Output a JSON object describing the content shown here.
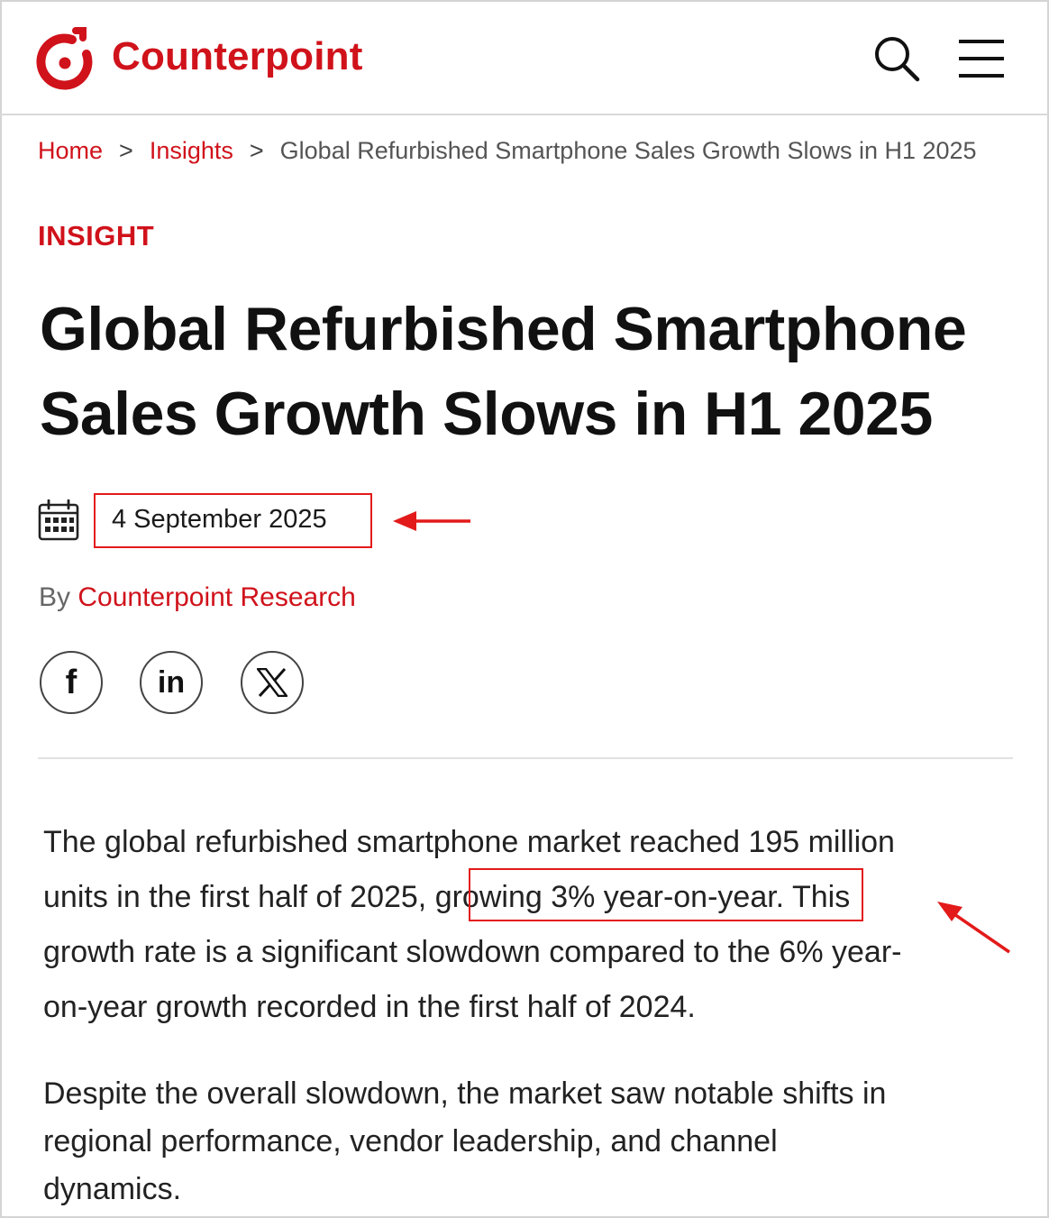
{
  "header": {
    "brand": "Counterpoint",
    "icons": [
      "counterpoint-logo-icon",
      "search-icon",
      "hamburger-menu-icon"
    ]
  },
  "breadcrumb": {
    "home": "Home",
    "separator": ">",
    "insights": "Insights",
    "current": "Global Refurbished Smartphone Sales Growth Slows in H1 2025"
  },
  "article": {
    "category": "INSIGHT",
    "title_line1": "Global Refurbished Smartphone",
    "title_line2": "Sales Growth Slows in H1 2025",
    "date": "4 September 2025",
    "by_prefix": "By",
    "author": "Counterpoint Research",
    "share": {
      "facebook": "f",
      "linkedin": "in",
      "x": "X"
    },
    "paragraph1": {
      "line1": "The global refurbished smartphone market reached 195 million",
      "line2_before": "units in the first half of 2025,",
      "line2_highlight": "growing 3% year-on-year.",
      "line2_after": "This",
      "line3": "growth rate is a significant slowdown compared to the 6% year-",
      "line4": "on-year growth recorded in the first half of 2024."
    },
    "paragraph2": {
      "line1": "Despite the overall slowdown, the market saw notable shifts in",
      "line2": "regional performance, vendor leadership, and channel",
      "line3": "dynamics."
    }
  },
  "colors": {
    "brand_red": "#d0121b",
    "annotation_red": "#e31a1a",
    "text_dark": "#111111"
  }
}
